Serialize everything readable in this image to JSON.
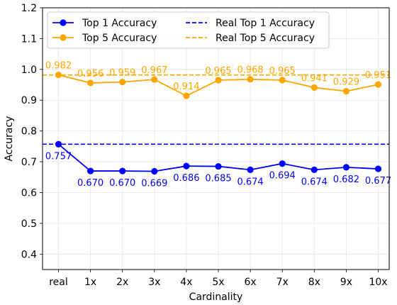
{
  "chart_data": {
    "type": "line",
    "categories": [
      "real",
      "1x",
      "2x",
      "3x",
      "4x",
      "5x",
      "6x",
      "7x",
      "8x",
      "9x",
      "10x"
    ],
    "xlabel": "Cardinality",
    "ylabel": "Accuracy",
    "ylim": [
      0.35,
      1.2
    ],
    "yticks": [
      0.4,
      0.5,
      0.6,
      0.7,
      0.8,
      0.9,
      1.0,
      1.1,
      1.2
    ],
    "ytick_labels": [
      "0.4",
      "0.5",
      "0.6",
      "0.7",
      "0.8",
      "0.9",
      "1.0",
      "1.1",
      "1.2"
    ],
    "grid": true,
    "legend_position": "top",
    "series": [
      {
        "name": "Top 1 Accuracy",
        "color": "#0000ff",
        "values": [
          0.757,
          0.67,
          0.67,
          0.669,
          0.686,
          0.685,
          0.674,
          0.694,
          0.674,
          0.682,
          0.677
        ],
        "labels": [
          "0.757",
          "0.670",
          "0.670",
          "0.669",
          "0.686",
          "0.685",
          "0.674",
          "0.694",
          "0.674",
          "0.682",
          "0.677"
        ]
      },
      {
        "name": "Top 5 Accuracy",
        "color": "#ffa500",
        "values": [
          0.982,
          0.956,
          0.959,
          0.967,
          0.914,
          0.965,
          0.968,
          0.965,
          0.941,
          0.929,
          0.951
        ],
        "labels": [
          "0.982",
          "0.956",
          "0.959",
          "0.967",
          "0.914",
          "0.965",
          "0.968",
          "0.965",
          "0.941",
          "0.929",
          "0.951"
        ]
      }
    ],
    "reference_lines": [
      {
        "name": "Real Top 1 Accuracy",
        "value": 0.757,
        "color": "#0000ff",
        "style": "dashed"
      },
      {
        "name": "Real Top 5 Accuracy",
        "value": 0.982,
        "color": "#ffa500",
        "style": "dashed"
      }
    ]
  }
}
